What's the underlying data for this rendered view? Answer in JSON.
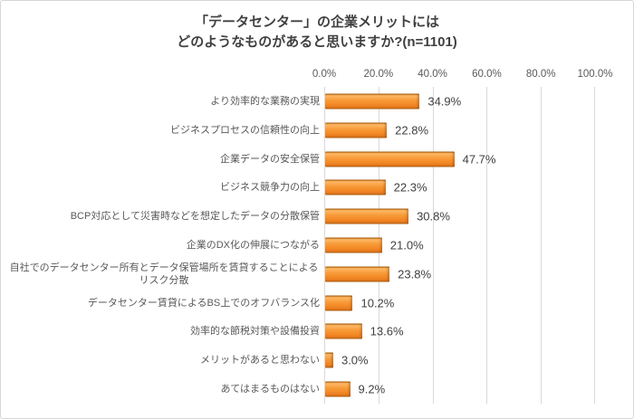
{
  "title": {
    "line1": "「データセンター」の企業メリットには",
    "line2": "どのようなものがあると思いますか?(n=1101)"
  },
  "chart_data": {
    "type": "bar",
    "orientation": "horizontal",
    "title": "「データセンター」の企業メリットには どのようなものがあると思いますか?(n=1101)",
    "sample_size_note": "n=1101",
    "categories": [
      "より効率的な業務の実現",
      "ビジネスプロセスの信頼性の向上",
      "企業データの安全保管",
      "ビジネス競争力の向上",
      "BCP対応として災害時などを想定したデータの分散保管",
      "企業のDX化の伸展につながる",
      "自社でのデータセンター所有とデータ保管場所を賃貸することによるリスク分散",
      "データセンター賃貸によるBS上でのオフバランス化",
      "効率的な節税対策や設備投資",
      "メリットがあると思わない",
      "あてはまるものはない"
    ],
    "values": [
      34.9,
      22.8,
      47.7,
      22.3,
      30.8,
      21.0,
      23.8,
      10.2,
      13.6,
      3.0,
      9.2
    ],
    "value_labels": [
      "34.9%",
      "22.8%",
      "47.7%",
      "22.3%",
      "30.8%",
      "21.0%",
      "23.8%",
      "10.2%",
      "13.6%",
      "3.0%",
      "9.2%"
    ],
    "xlabel": "",
    "ylabel": "",
    "x_axis": {
      "position": "top",
      "min": 0,
      "max": 100,
      "ticks": [
        "0.0%",
        "20.0%",
        "40.0%",
        "60.0%",
        "80.0%",
        "100.0%"
      ]
    },
    "grid": "vertical",
    "legend": "none",
    "bar_color": "#F5902C",
    "gridline_color": "#D9D9D9",
    "label_color": "#595959",
    "value_label_color": "#404040"
  }
}
